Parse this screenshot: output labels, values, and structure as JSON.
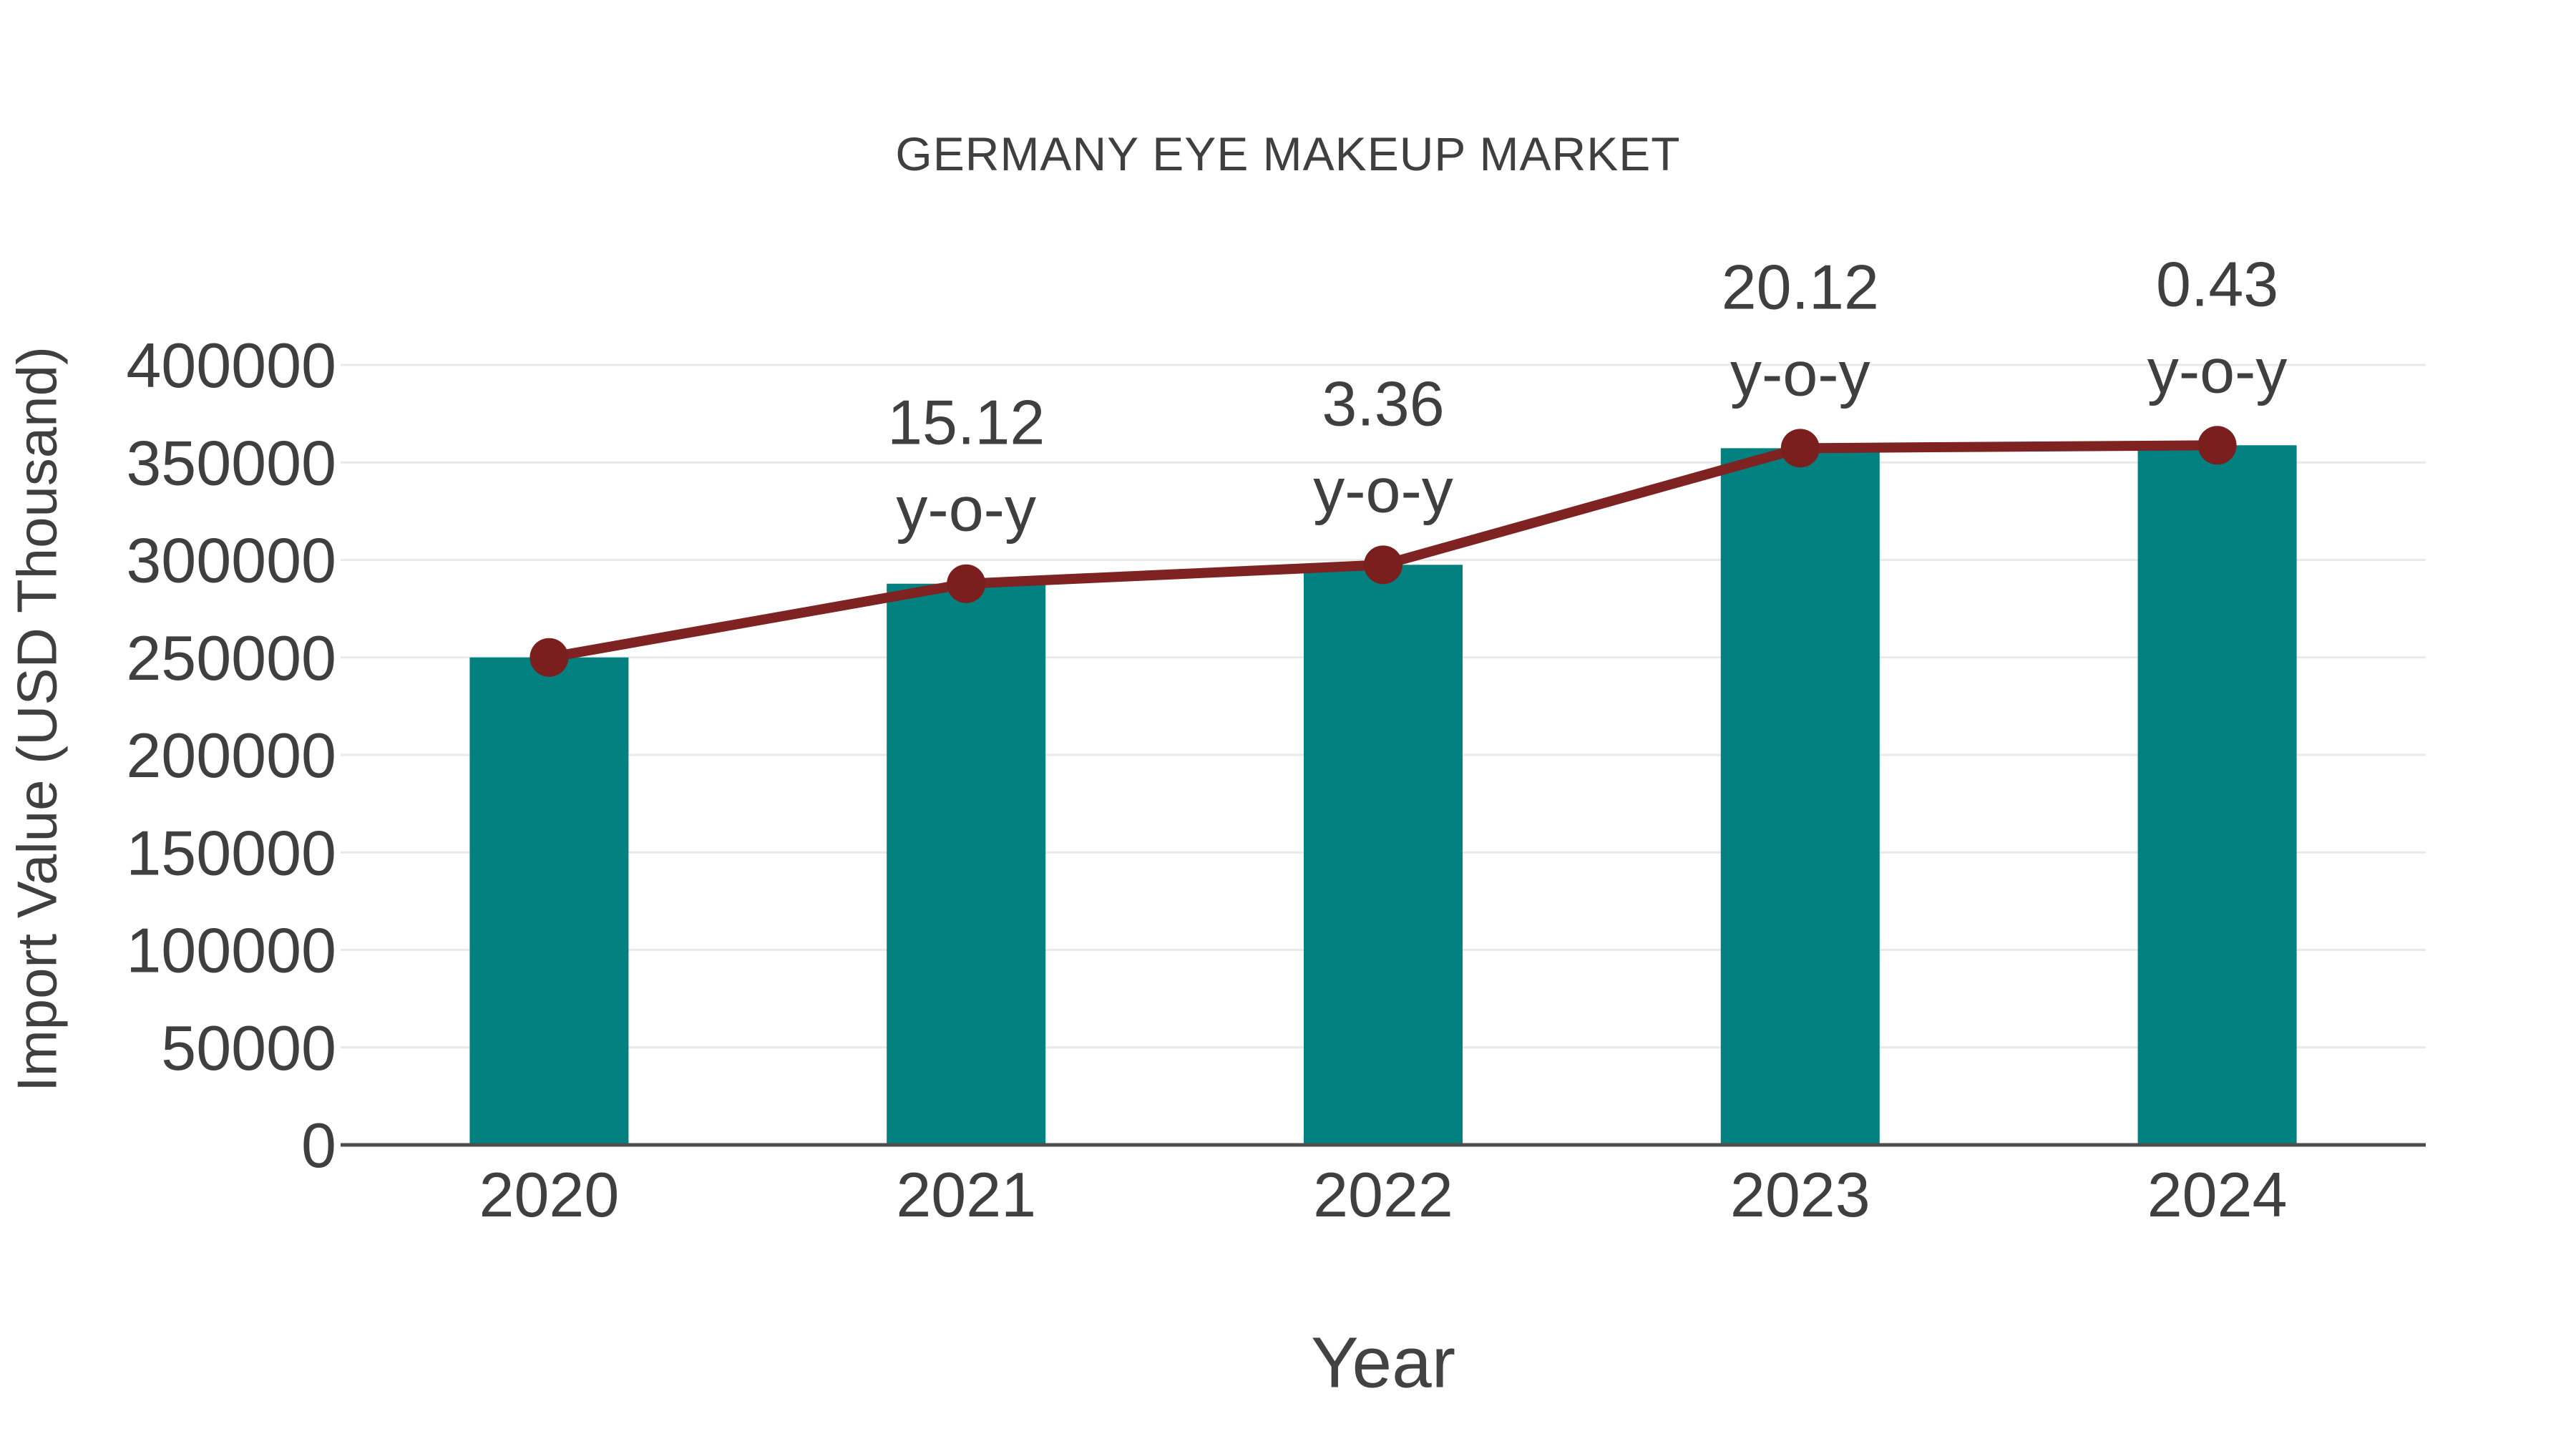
{
  "chart_data": {
    "type": "bar+line",
    "title": "GERMANY EYE MAKEUP MARKET",
    "xlabel": "Year",
    "ylabel": "Import Value (USD Thousand)",
    "categories": [
      "2020",
      "2021",
      "2022",
      "2023",
      "2024"
    ],
    "series": [
      {
        "name": "Import Value (USD Thousand)",
        "type": "bar",
        "color": "#028180",
        "values": [
          250000,
          287800,
          297500,
          357300,
          358800
        ]
      },
      {
        "name": "Import Value trend",
        "type": "line",
        "color": "#7e2222",
        "marker_color": "#7a1e1e",
        "values": [
          250000,
          287800,
          297500,
          357300,
          358800
        ],
        "yoy_percent": [
          null,
          15.12,
          3.36,
          20.12,
          0.43
        ]
      }
    ],
    "annotations": [
      {
        "category": "2021",
        "lines": [
          "15.12",
          "y-o-y"
        ]
      },
      {
        "category": "2022",
        "lines": [
          "3.36",
          "y-o-y"
        ]
      },
      {
        "category": "2023",
        "lines": [
          "20.12",
          "y-o-y"
        ]
      },
      {
        "category": "2024",
        "lines": [
          "0.43",
          "y-o-y"
        ]
      }
    ],
    "yticks": [
      0,
      50000,
      100000,
      150000,
      200000,
      250000,
      300000,
      350000,
      400000
    ],
    "ylim": [
      0,
      400000
    ],
    "grid": true,
    "legend": false,
    "colors": {
      "bar": "#028180",
      "line": "#7e2222",
      "marker": "#7a1e1e",
      "grid": "#e9e9e9",
      "axis": "#4d4d4d",
      "text": "#3f3f3f"
    }
  }
}
